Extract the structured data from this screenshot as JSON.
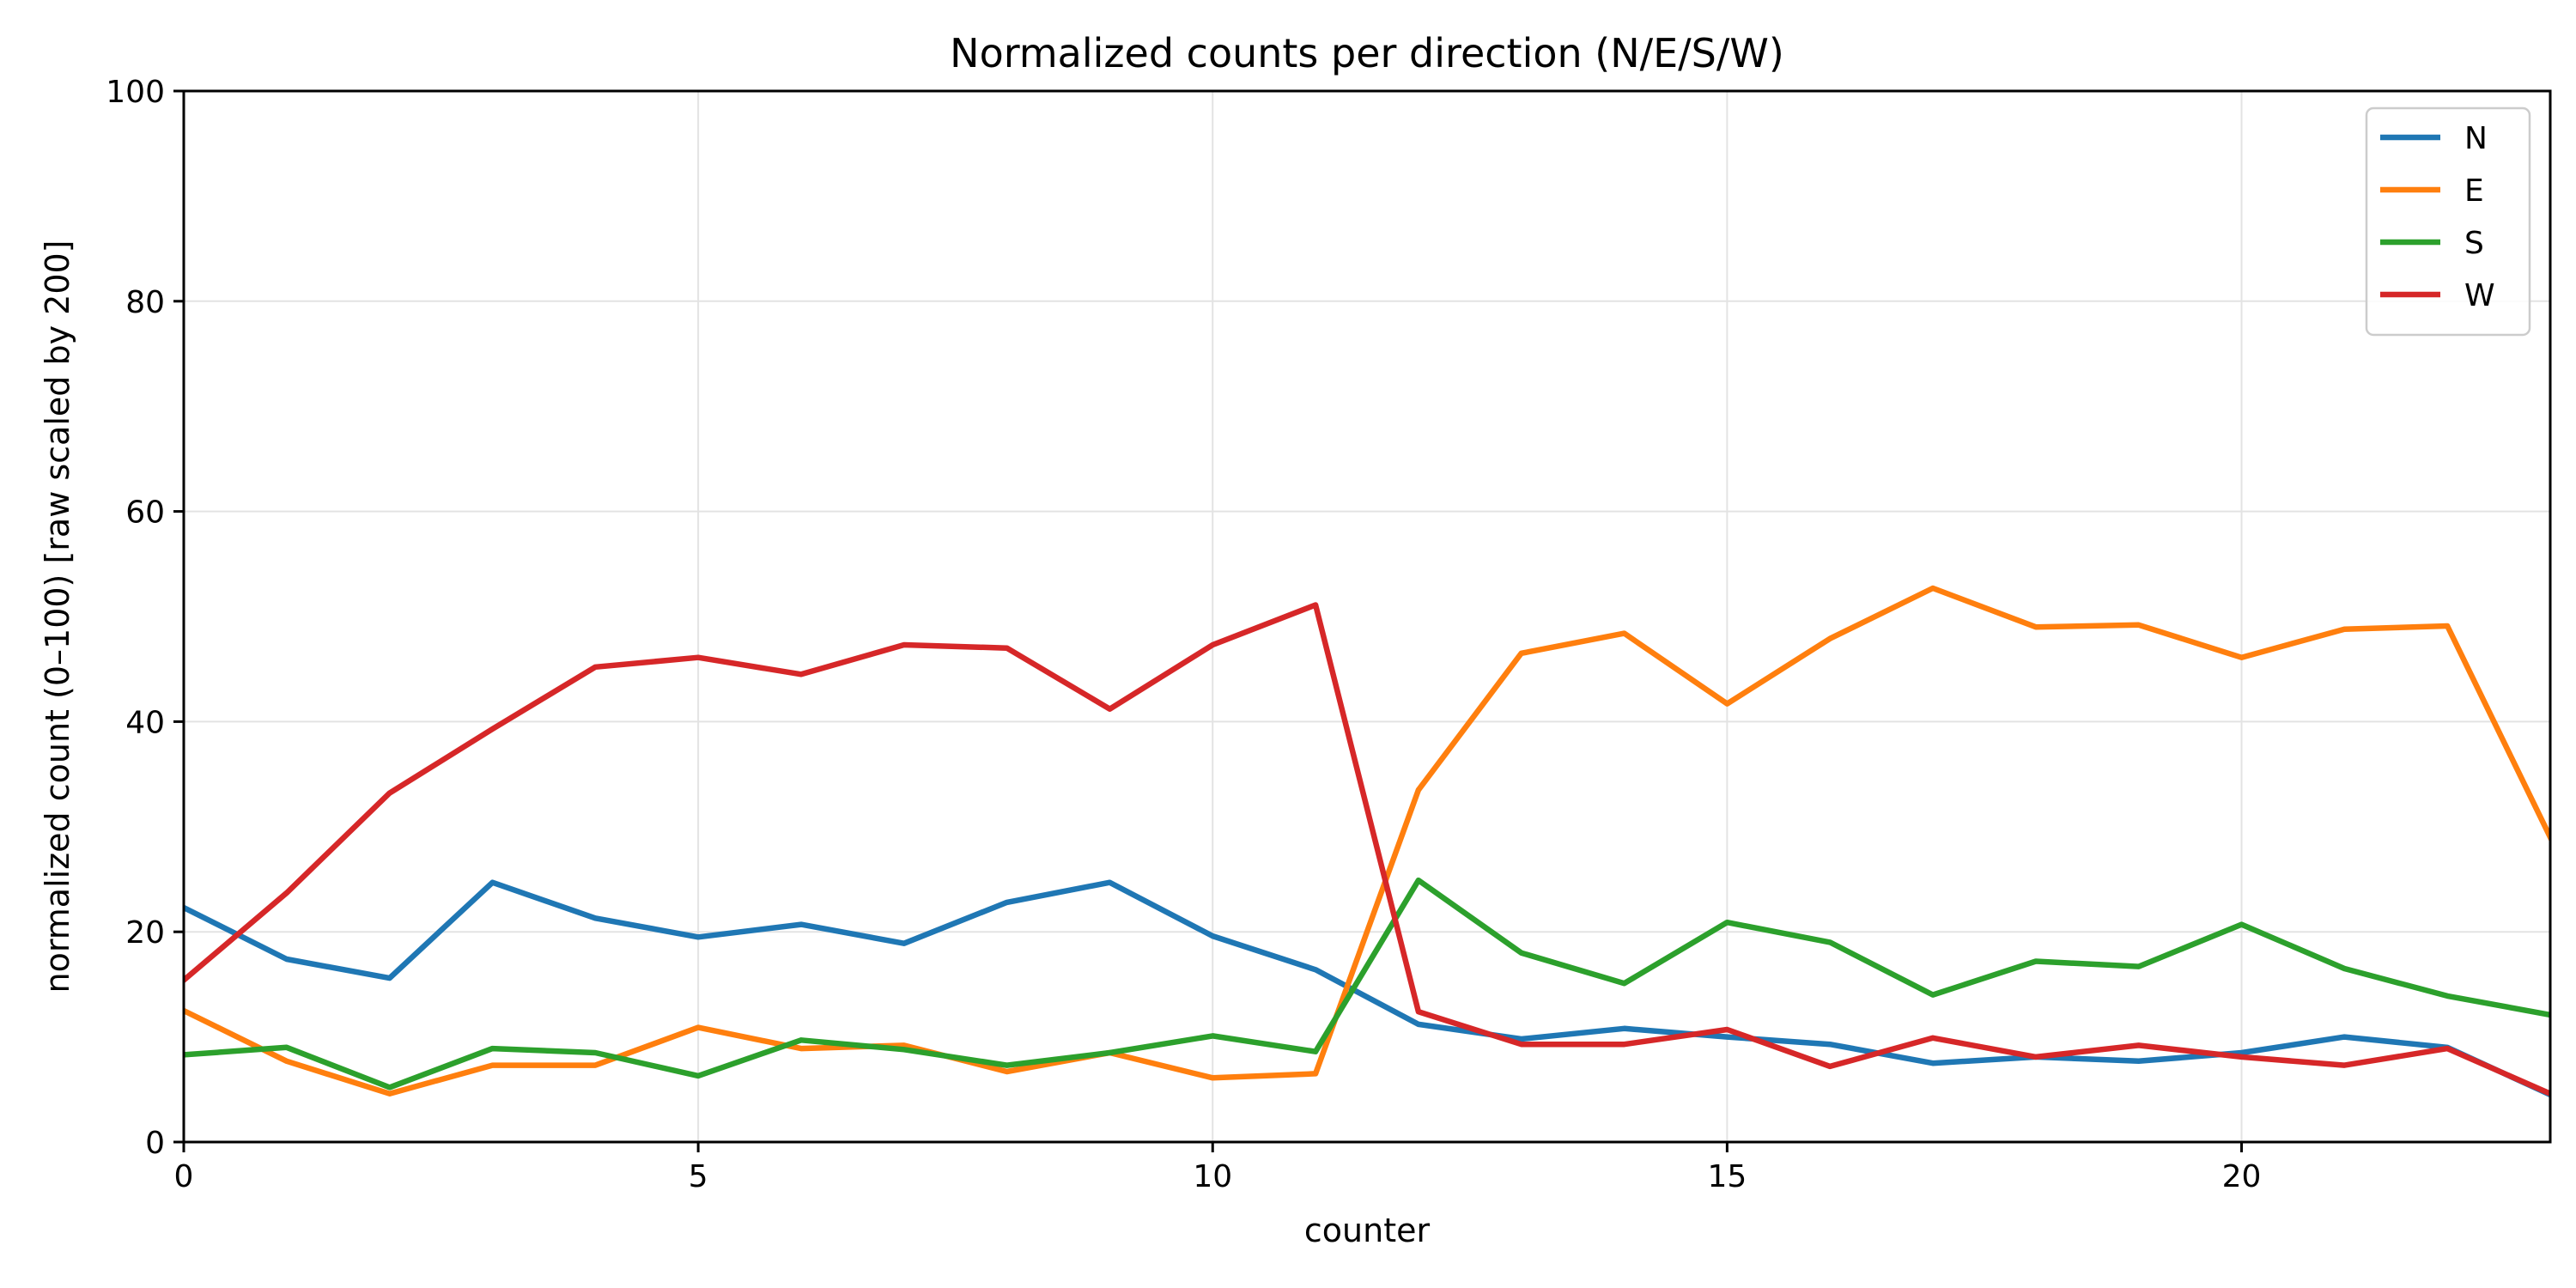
{
  "chart_data": {
    "type": "line",
    "title": "Normalized counts per direction (N/E/S/W)",
    "xlabel": "counter",
    "ylabel": "normalized count (0–100)  [raw scaled by 200]",
    "xlim": [
      0,
      23
    ],
    "ylim": [
      0,
      100
    ],
    "xticks": [
      0,
      5,
      10,
      15,
      20
    ],
    "yticks": [
      0,
      20,
      40,
      60,
      80,
      100
    ],
    "grid": true,
    "legend_position": "top-right",
    "x": [
      0,
      1,
      2,
      3,
      4,
      5,
      6,
      7,
      8,
      9,
      10,
      11,
      12,
      13,
      14,
      15,
      16,
      17,
      18,
      19,
      20,
      21,
      22,
      23
    ],
    "series": [
      {
        "name": "N",
        "color": "#1f77b4",
        "values": [
          22.3,
          17.4,
          15.6,
          24.7,
          21.3,
          19.5,
          20.7,
          18.9,
          22.8,
          24.7,
          19.6,
          16.4,
          11.2,
          9.8,
          10.8,
          10.0,
          9.3,
          7.5,
          8.1,
          7.7,
          8.5,
          10.0,
          9.0,
          4.5
        ]
      },
      {
        "name": "E",
        "color": "#ff7f0e",
        "values": [
          12.5,
          7.7,
          4.6,
          7.3,
          7.3,
          10.9,
          8.9,
          9.2,
          6.7,
          8.5,
          6.1,
          6.5,
          33.5,
          46.5,
          48.4,
          41.7,
          47.9,
          52.7,
          49.0,
          49.2,
          46.1,
          48.8,
          49.1,
          29.0
        ]
      },
      {
        "name": "S",
        "color": "#2ca02c",
        "values": [
          8.3,
          9.0,
          5.2,
          8.9,
          8.5,
          6.3,
          9.7,
          8.8,
          7.3,
          8.5,
          10.1,
          8.6,
          24.9,
          18.0,
          15.1,
          20.9,
          19.0,
          14.0,
          17.2,
          16.7,
          20.7,
          16.5,
          13.9,
          12.1
        ]
      },
      {
        "name": "W",
        "color": "#d62728",
        "values": [
          15.4,
          23.7,
          33.2,
          39.3,
          45.2,
          46.1,
          44.5,
          47.3,
          47.0,
          41.2,
          47.3,
          51.1,
          12.4,
          9.3,
          9.3,
          10.7,
          7.2,
          9.9,
          8.1,
          9.2,
          8.1,
          7.3,
          8.9,
          4.6
        ]
      }
    ]
  }
}
